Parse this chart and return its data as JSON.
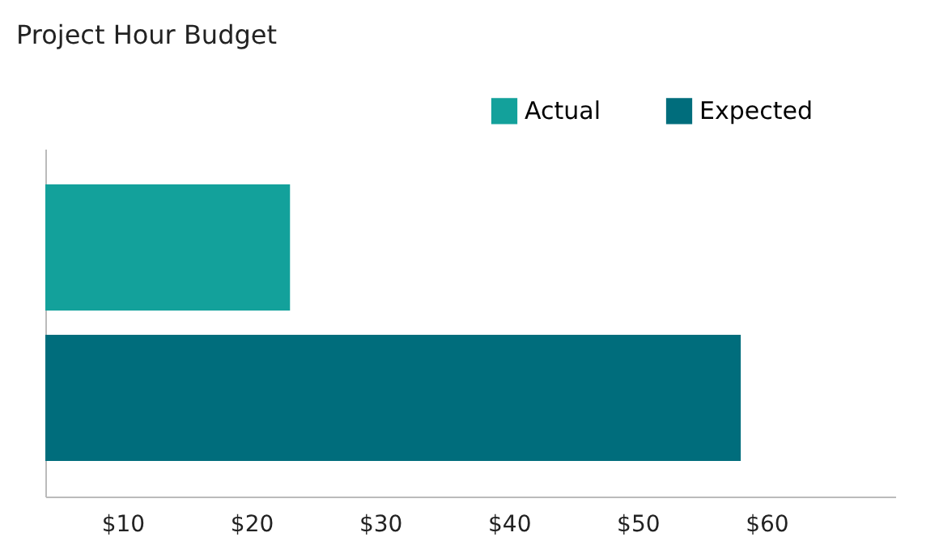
{
  "chart_data": {
    "type": "bar",
    "orientation": "horizontal",
    "title": "Project Hour Budget",
    "categories": [
      null
    ],
    "series": [
      {
        "name": "Actual",
        "color": "#13a19b",
        "values": [
          23
        ]
      },
      {
        "name": "Expected",
        "color": "#006d7c",
        "values": [
          58
        ]
      }
    ],
    "xlim": [
      4,
      70
    ],
    "xticks": [
      {
        "value": 10,
        "label": "$10"
      },
      {
        "value": 20,
        "label": "$20"
      },
      {
        "value": 30,
        "label": "$30"
      },
      {
        "value": 40,
        "label": "$40"
      },
      {
        "value": 50,
        "label": "$50"
      },
      {
        "value": 60,
        "label": "$60"
      }
    ],
    "tick_labels": "x",
    "grid": false,
    "legend": "top right"
  }
}
